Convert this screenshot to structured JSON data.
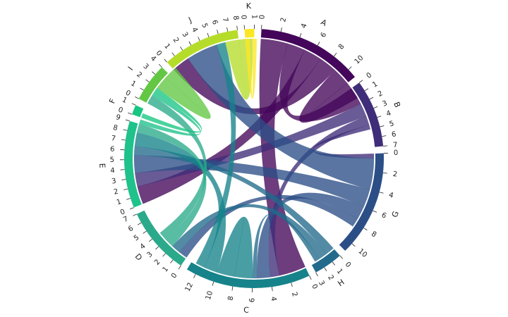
{
  "chart_data": {
    "type": "chord",
    "title": "",
    "groups": [
      {
        "name": "A",
        "total": 11,
        "color": "#44065a"
      },
      {
        "name": "B",
        "total": 7,
        "color": "#3f2d79"
      },
      {
        "name": "G",
        "total": 11,
        "color": "#2b4e86"
      },
      {
        "name": "H",
        "total": 3,
        "color": "#226a8c"
      },
      {
        "name": "C",
        "total": 13,
        "color": "#16838a"
      },
      {
        "name": "D",
        "total": 7,
        "color": "#2aaa8a"
      },
      {
        "name": "E",
        "total": 9,
        "color": "#1ec28a"
      },
      {
        "name": "F",
        "total": 1,
        "color": "#17c682"
      },
      {
        "name": "I",
        "total": 4,
        "color": "#63c743"
      },
      {
        "name": "J",
        "total": 8,
        "color": "#b6dc2a"
      },
      {
        "name": "K",
        "total": 1,
        "color": "#fde725"
      }
    ],
    "ticks": {
      "A": [
        "0",
        "2",
        "4",
        "6",
        "8",
        "10"
      ],
      "B": [
        "0",
        "1",
        "2",
        "3",
        "4",
        "5",
        "6",
        "7"
      ],
      "G": [
        "0",
        "2",
        "4",
        "6",
        "8",
        "10"
      ],
      "H": [
        "0",
        "1",
        "2",
        "3"
      ],
      "C": [
        "0",
        "2",
        "4",
        "6",
        "8",
        "10",
        "12"
      ],
      "D": [
        "0",
        "1",
        "2",
        "3",
        "4",
        "5",
        "6",
        "7"
      ],
      "E": [
        "0",
        "1",
        "2",
        "3",
        "4",
        "5",
        "6",
        "7",
        "8",
        "9"
      ],
      "F": [
        "0",
        "1"
      ],
      "I": [
        "0",
        "1",
        "2",
        "3",
        "4"
      ],
      "J": [
        "0",
        "1",
        "2",
        "3",
        "4",
        "5",
        "6",
        "7",
        "8"
      ],
      "K": [
        "0",
        "1"
      ]
    },
    "chords": [
      {
        "source": "A",
        "target": "C",
        "value": 3.0
      },
      {
        "source": "A",
        "target": "B",
        "value": 2.0
      },
      {
        "source": "A",
        "target": "E",
        "value": 2.0
      },
      {
        "source": "A",
        "target": "J",
        "value": 2.0
      },
      {
        "source": "A",
        "target": "A",
        "value": 2.0
      },
      {
        "source": "B",
        "target": "E",
        "value": 1.5
      },
      {
        "source": "B",
        "target": "C",
        "value": 1.0
      },
      {
        "source": "B",
        "target": "G",
        "value": 0.5
      },
      {
        "source": "G",
        "target": "J",
        "value": 3.5
      },
      {
        "source": "G",
        "target": "E",
        "value": 2.0
      },
      {
        "source": "G",
        "target": "C",
        "value": 1.5
      },
      {
        "source": "G",
        "target": "D",
        "value": 1.0
      },
      {
        "source": "H",
        "target": "E",
        "value": 1.0
      },
      {
        "source": "H",
        "target": "D",
        "value": 1.0
      },
      {
        "source": "H",
        "target": "C",
        "value": 0.5
      },
      {
        "source": "C",
        "target": "C",
        "value": 2.0
      },
      {
        "source": "C",
        "target": "E",
        "value": 1.5
      },
      {
        "source": "C",
        "target": "J",
        "value": 1.0
      },
      {
        "source": "D",
        "target": "E",
        "value": 1.0
      },
      {
        "source": "D",
        "target": "I",
        "value": 1.0
      },
      {
        "source": "E",
        "target": "I",
        "value": 0.5
      },
      {
        "source": "F",
        "target": "I",
        "value": 0.5
      },
      {
        "source": "I",
        "target": "I",
        "value": 1.5
      },
      {
        "source": "J",
        "target": "J",
        "value": 1.5
      },
      {
        "source": "K",
        "target": "J",
        "value": 0.5
      }
    ]
  }
}
